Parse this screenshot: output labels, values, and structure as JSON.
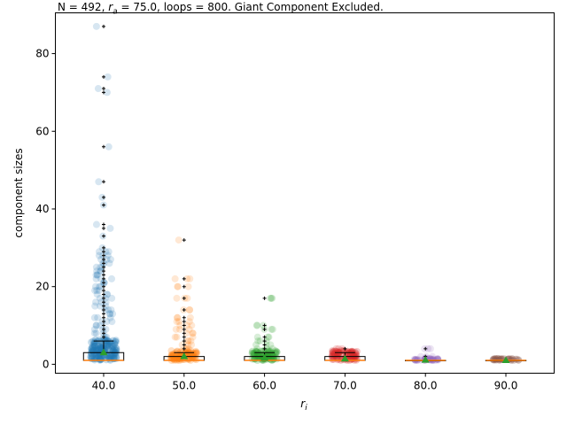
{
  "chart_data": {
    "type": "box-strip",
    "title": {
      "prefix": "N = 492, ",
      "ra_symbol": "r",
      "ra_sub": "a",
      "suffix": " = 75.0, loops = 800. Giant Component Excluded."
    },
    "xlabel_symbol": "r",
    "xlabel_sub": "i",
    "ylabel": "component sizes",
    "categories": [
      "40.0",
      "50.0",
      "60.0",
      "70.0",
      "80.0",
      "90.0"
    ],
    "yticks": [
      0,
      20,
      40,
      60,
      80
    ],
    "ylim": [
      -2.3,
      90.5
    ],
    "grid": false,
    "colors": [
      "#1f77b4",
      "#ff7f0e",
      "#2ca02c",
      "#d62728",
      "#9467bd",
      "#8c564b"
    ],
    "median_color": "#ff7f0e",
    "mean_color": "#2ca02c",
    "series": [
      {
        "category": "40.0",
        "box": {
          "q1": 1,
          "median": 1,
          "q3": 3,
          "whisker_low": 1,
          "whisker_high": 6
        },
        "mean": 3,
        "outliers": [
          7,
          8,
          9,
          10,
          11,
          12,
          13,
          14,
          15,
          16,
          17,
          18,
          19,
          20,
          21,
          22,
          23,
          24,
          25,
          26,
          27,
          28,
          29,
          30,
          33,
          35,
          36,
          41,
          43,
          47,
          56,
          70,
          71,
          74,
          87
        ]
      },
      {
        "category": "50.0",
        "box": {
          "q1": 1,
          "median": 1,
          "q3": 2,
          "whisker_low": 1,
          "whisker_high": 3
        },
        "mean": 2,
        "outliers": [
          4,
          5,
          6,
          7,
          8,
          9,
          10,
          11,
          12,
          14,
          17,
          20,
          22,
          32
        ]
      },
      {
        "category": "60.0",
        "box": {
          "q1": 1,
          "median": 1,
          "q3": 2,
          "whisker_low": 1,
          "whisker_high": 3
        },
        "mean": 1.6,
        "outliers": [
          4,
          5,
          6,
          7,
          9,
          10,
          17
        ]
      },
      {
        "category": "70.0",
        "box": {
          "q1": 1,
          "median": 1,
          "q3": 2,
          "whisker_low": 1,
          "whisker_high": 3
        },
        "mean": 1.4,
        "outliers": [
          4
        ]
      },
      {
        "category": "80.0",
        "box": {
          "q1": 1,
          "median": 1,
          "q3": 1,
          "whisker_low": 1,
          "whisker_high": 1
        },
        "mean": 1.1,
        "outliers": [
          2,
          4
        ]
      },
      {
        "category": "90.0",
        "box": {
          "q1": 1,
          "median": 1,
          "q3": 1,
          "whisker_low": 1,
          "whisker_high": 1
        },
        "mean": 1,
        "outliers": []
      }
    ]
  }
}
